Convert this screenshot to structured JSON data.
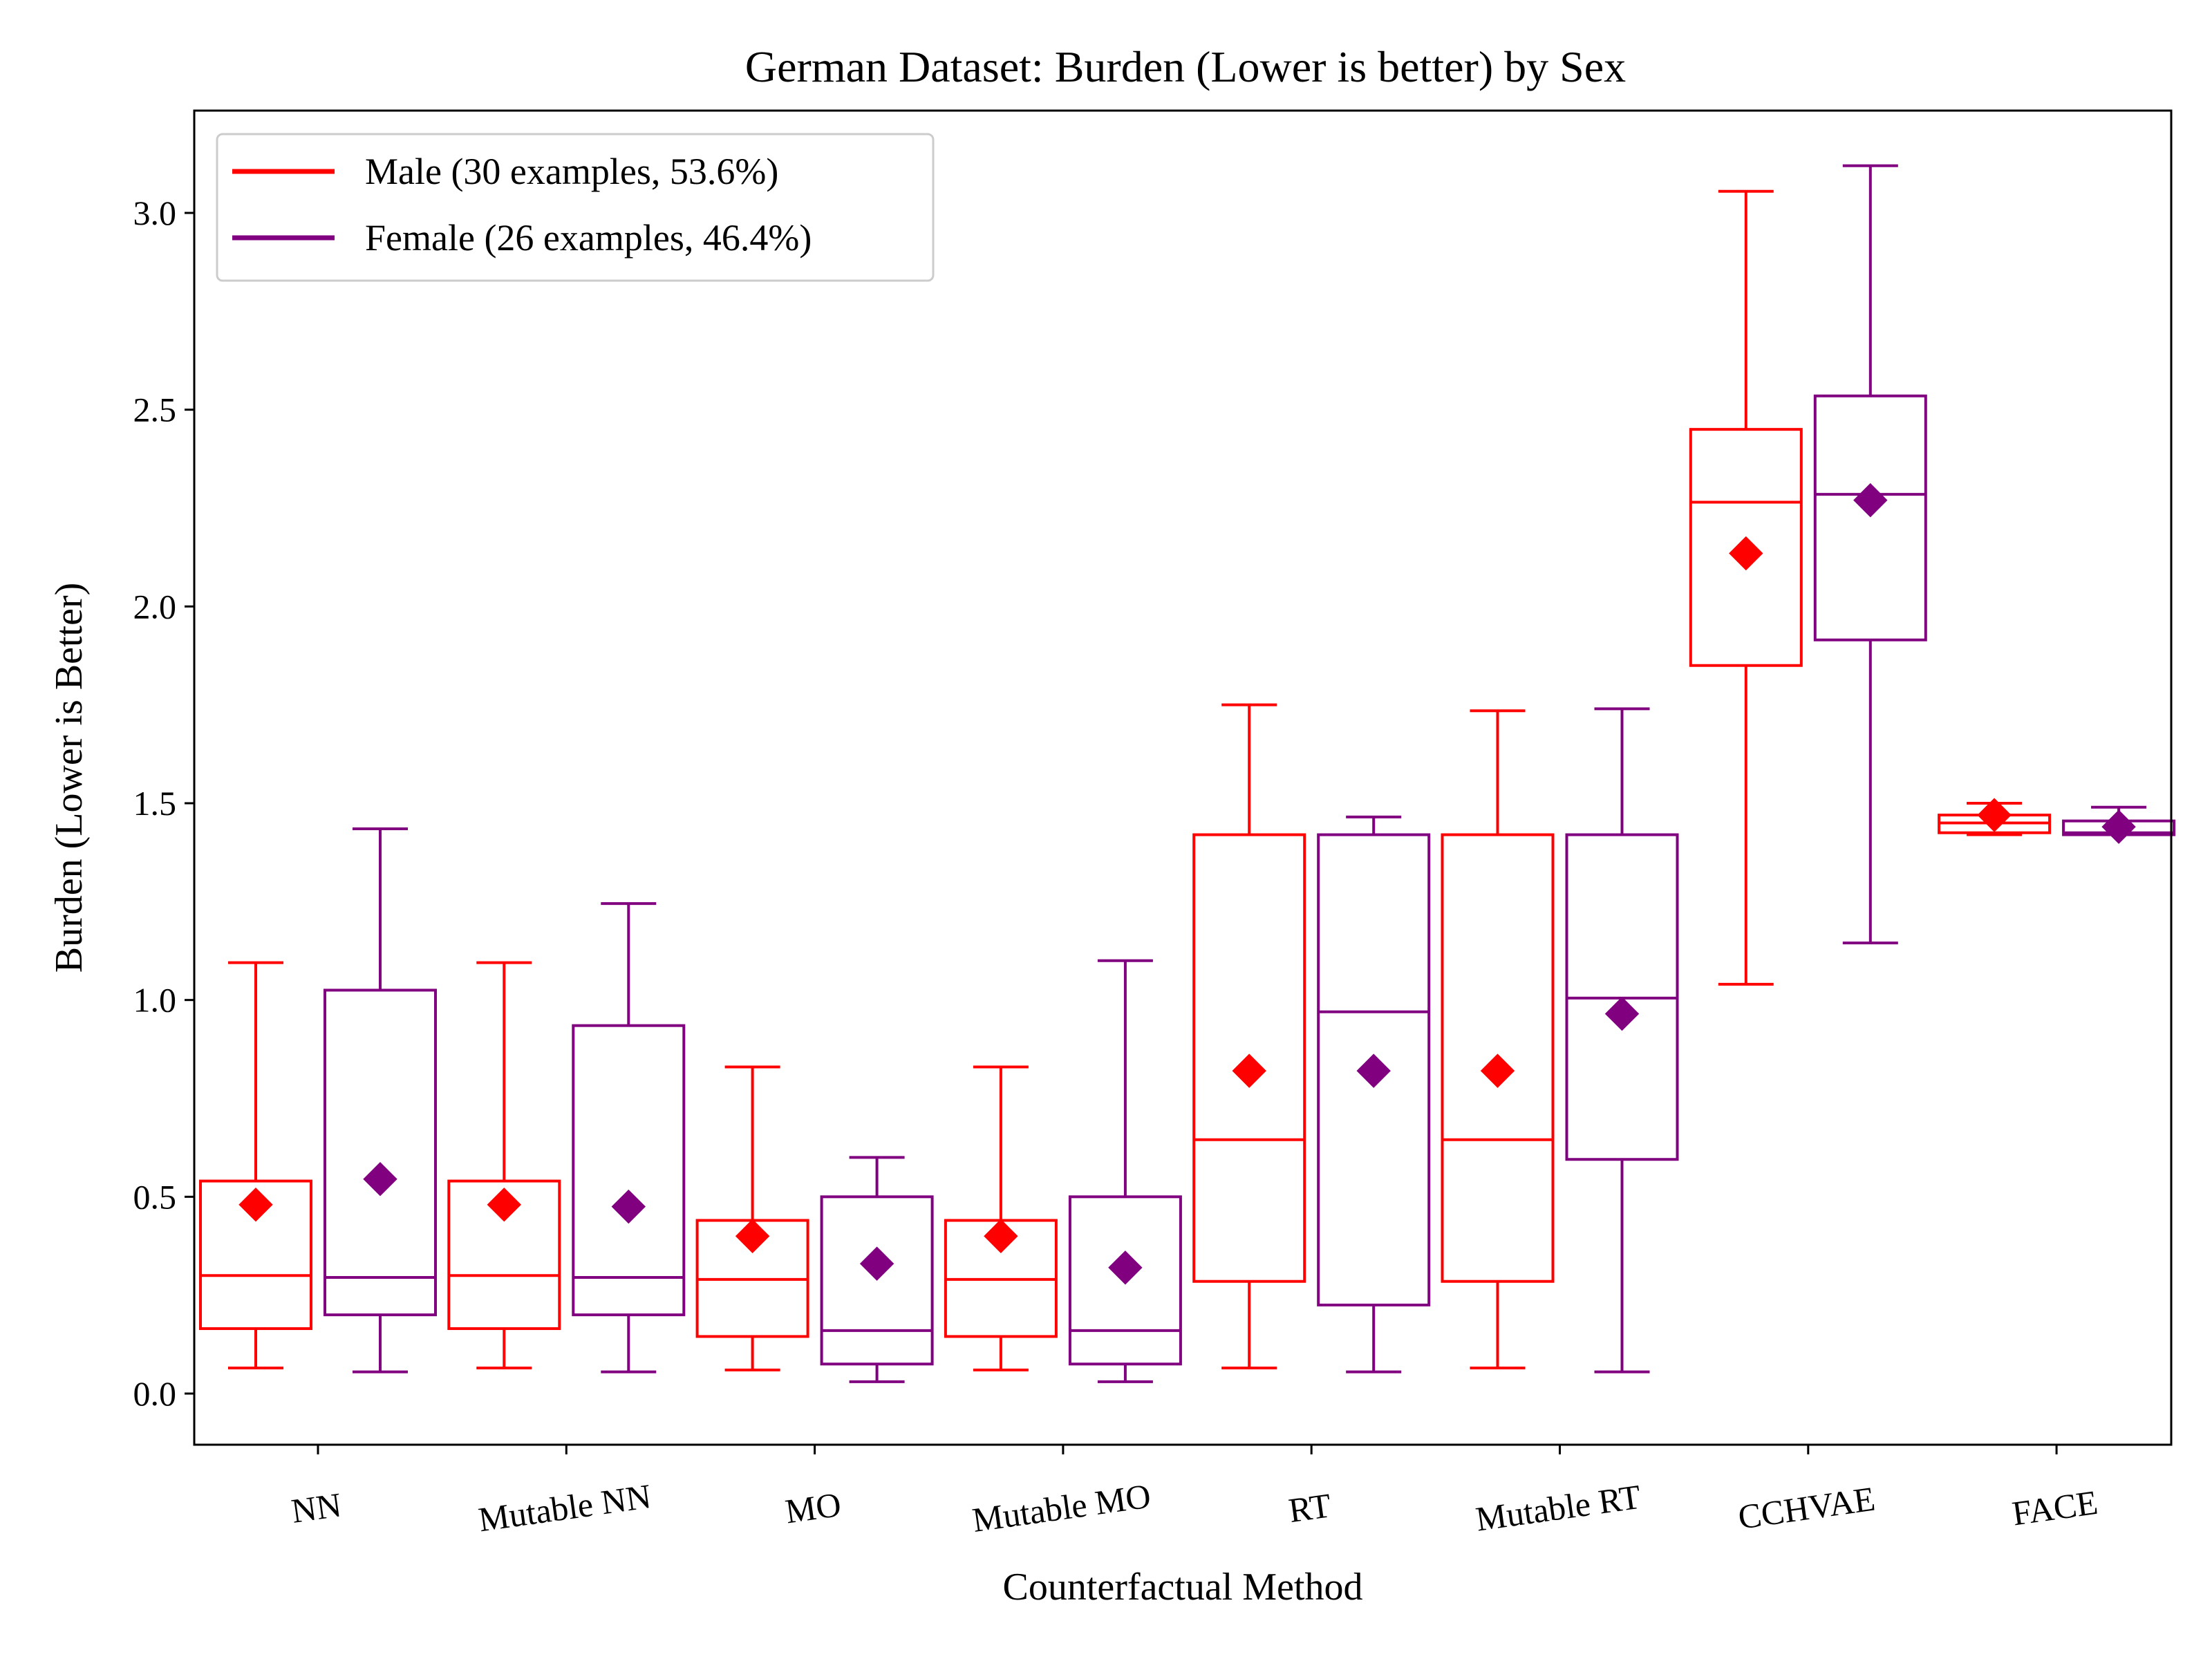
{
  "chart_data": {
    "type": "box",
    "title": "German Dataset: Burden (Lower is better) by Sex",
    "xlabel": "Counterfactual Method",
    "ylabel": "Burden (Lower is Better)",
    "ylim": [
      -0.13,
      3.26
    ],
    "yticks": [
      "0.0",
      "0.5",
      "1.0",
      "1.5",
      "2.0",
      "2.5",
      "3.0"
    ],
    "grid": false,
    "legend_position": "top-left",
    "categories": [
      "NN",
      "Mutable NN",
      "MO",
      "Mutable MO",
      "RT",
      "Mutable RT",
      "CCHVAE",
      "FACE"
    ],
    "series": [
      {
        "name": "Male (30 examples, 53.6%)",
        "color": "#ff0000",
        "boxes": [
          {
            "whislo": 0.065,
            "q1": 0.165,
            "median": 0.3,
            "q3": 0.54,
            "whishi": 1.095,
            "mean": 0.48
          },
          {
            "whislo": 0.065,
            "q1": 0.165,
            "median": 0.3,
            "q3": 0.54,
            "whishi": 1.095,
            "mean": 0.48
          },
          {
            "whislo": 0.06,
            "q1": 0.145,
            "median": 0.29,
            "q3": 0.44,
            "whishi": 0.83,
            "mean": 0.4
          },
          {
            "whislo": 0.06,
            "q1": 0.145,
            "median": 0.29,
            "q3": 0.44,
            "whishi": 0.83,
            "mean": 0.4
          },
          {
            "whislo": 0.065,
            "q1": 0.285,
            "median": 0.645,
            "q3": 1.42,
            "whishi": 1.75,
            "mean": 0.82
          },
          {
            "whislo": 0.065,
            "q1": 0.285,
            "median": 0.645,
            "q3": 1.42,
            "whishi": 1.735,
            "mean": 0.82
          },
          {
            "whislo": 1.04,
            "q1": 1.85,
            "median": 2.265,
            "q3": 2.45,
            "whishi": 3.055,
            "mean": 2.135
          },
          {
            "whislo": 1.42,
            "q1": 1.425,
            "median": 1.45,
            "q3": 1.47,
            "whishi": 1.5,
            "mean": 1.47
          }
        ]
      },
      {
        "name": "Female (26 examples, 46.4%)",
        "color": "#800080",
        "boxes": [
          {
            "whislo": 0.055,
            "q1": 0.2,
            "median": 0.295,
            "q3": 1.025,
            "whishi": 1.435,
            "mean": 0.545
          },
          {
            "whislo": 0.055,
            "q1": 0.2,
            "median": 0.295,
            "q3": 0.935,
            "whishi": 1.245,
            "mean": 0.475
          },
          {
            "whislo": 0.03,
            "q1": 0.075,
            "median": 0.16,
            "q3": 0.5,
            "whishi": 0.6,
            "mean": 0.33
          },
          {
            "whislo": 0.03,
            "q1": 0.075,
            "median": 0.16,
            "q3": 0.5,
            "whishi": 1.1,
            "mean": 0.32
          },
          {
            "whislo": 0.055,
            "q1": 0.225,
            "median": 0.97,
            "q3": 1.42,
            "whishi": 1.465,
            "mean": 0.82
          },
          {
            "whislo": 0.055,
            "q1": 0.595,
            "median": 1.005,
            "q3": 1.42,
            "whishi": 1.74,
            "mean": 0.965
          },
          {
            "whislo": 1.145,
            "q1": 1.915,
            "median": 2.285,
            "q3": 2.535,
            "whishi": 3.12,
            "mean": 2.27
          },
          {
            "whislo": 1.42,
            "q1": 1.42,
            "median": 1.425,
            "q3": 1.455,
            "whishi": 1.49,
            "mean": 1.44
          }
        ]
      }
    ]
  }
}
